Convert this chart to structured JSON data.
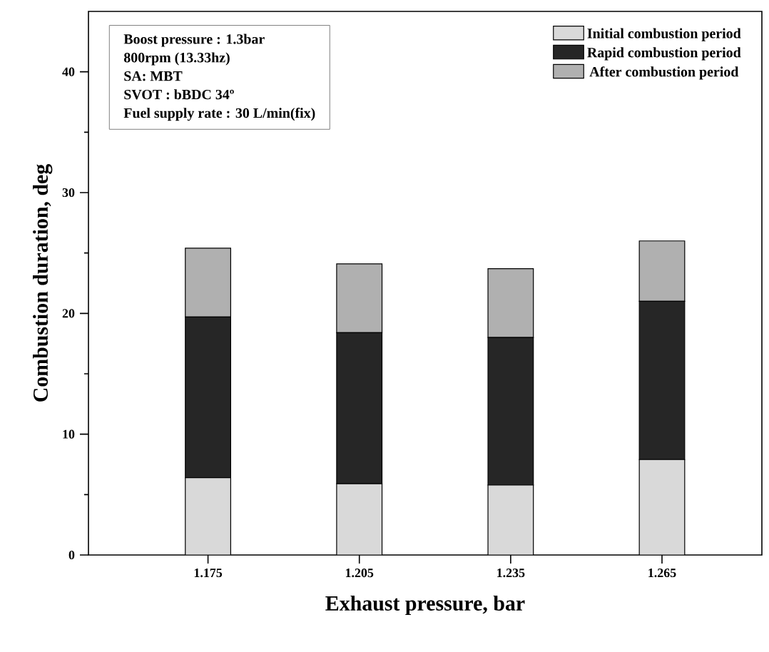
{
  "chart_data": {
    "type": "bar",
    "stacked": true,
    "xlabel": "Exhaust pressure, bar",
    "ylabel": "Combustion duration, deg",
    "categories": [
      "1.175",
      "1.205",
      "1.235",
      "1.265"
    ],
    "series": [
      {
        "name": "Initial combustion period",
        "color": "#d9d9d9",
        "values": [
          6.4,
          5.9,
          5.8,
          7.9
        ]
      },
      {
        "name": "Rapid combustion period",
        "color": "#262626",
        "values": [
          13.3,
          12.5,
          12.2,
          13.1
        ]
      },
      {
        "name": "After combustion period",
        "color": "#b0b0b0",
        "values": [
          5.7,
          5.7,
          5.7,
          5.0
        ]
      }
    ],
    "ylim": [
      0,
      45
    ],
    "yticks": [
      0,
      10,
      20,
      30,
      40
    ],
    "grid": false,
    "legend": "top right",
    "annotations": [
      "Boost pressure : 1.3bar",
      "800rpm (13.33hz)",
      "SA: MBT",
      "SVOT : bBDC 34º",
      "Fuel supply rate : 30 L/min(fix)"
    ]
  }
}
